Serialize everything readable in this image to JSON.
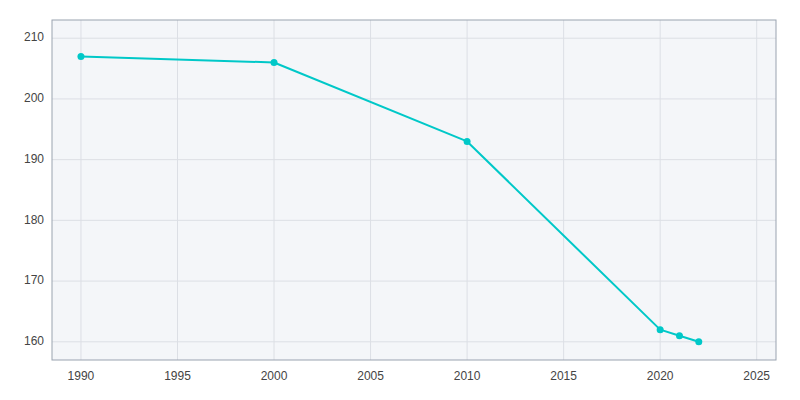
{
  "chart_data": {
    "type": "line",
    "x": [
      1990,
      2000,
      2010,
      2020,
      2021,
      2022
    ],
    "values": [
      207,
      206,
      193,
      162,
      161,
      160
    ],
    "color": "#00c8c8",
    "marker": "circle",
    "xlim": [
      1988.5,
      2026
    ],
    "ylim": [
      157,
      213
    ],
    "xticks": [
      1990,
      1995,
      2000,
      2005,
      2010,
      2015,
      2020,
      2025
    ],
    "yticks": [
      160,
      170,
      180,
      190,
      200,
      210
    ],
    "grid": true
  }
}
